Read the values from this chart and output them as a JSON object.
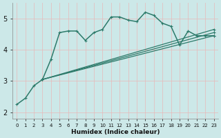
{
  "background_color": "#cce8e8",
  "grid_color": "#b0d0d0",
  "line_color": "#2d7a6a",
  "xlabel": "Humidex (Indice chaleur)",
  "xlim": [
    -0.5,
    23.5
  ],
  "ylim": [
    1.8,
    5.5
  ],
  "xticks": [
    0,
    1,
    2,
    3,
    4,
    5,
    6,
    7,
    8,
    9,
    10,
    11,
    12,
    13,
    14,
    15,
    16,
    17,
    18,
    19,
    20,
    21,
    22,
    23
  ],
  "yticks": [
    2,
    3,
    4,
    5
  ],
  "lines": [
    {
      "x": [
        0,
        1,
        2,
        3,
        4,
        5,
        6,
        7,
        8,
        9,
        10,
        11,
        12,
        13,
        14,
        15,
        16,
        17,
        18,
        19,
        20,
        21,
        22,
        23
      ],
      "y": [
        2.25,
        2.45,
        2.85,
        3.05,
        3.7,
        4.55,
        4.6,
        4.6,
        4.3,
        4.55,
        4.65,
        5.05,
        5.05,
        4.95,
        4.9,
        5.2,
        5.1,
        4.85,
        4.75,
        4.15,
        4.6,
        4.45,
        4.45,
        4.45
      ],
      "lw": 1.1,
      "ms": 3.5
    },
    {
      "x": [
        3,
        23
      ],
      "y": [
        3.05,
        4.45
      ],
      "lw": 0.9,
      "ms": 0
    },
    {
      "x": [
        3,
        23
      ],
      "y": [
        3.05,
        4.55
      ],
      "lw": 0.9,
      "ms": 0
    },
    {
      "x": [
        3,
        23
      ],
      "y": [
        3.05,
        4.65
      ],
      "lw": 0.9,
      "ms": 0
    }
  ]
}
